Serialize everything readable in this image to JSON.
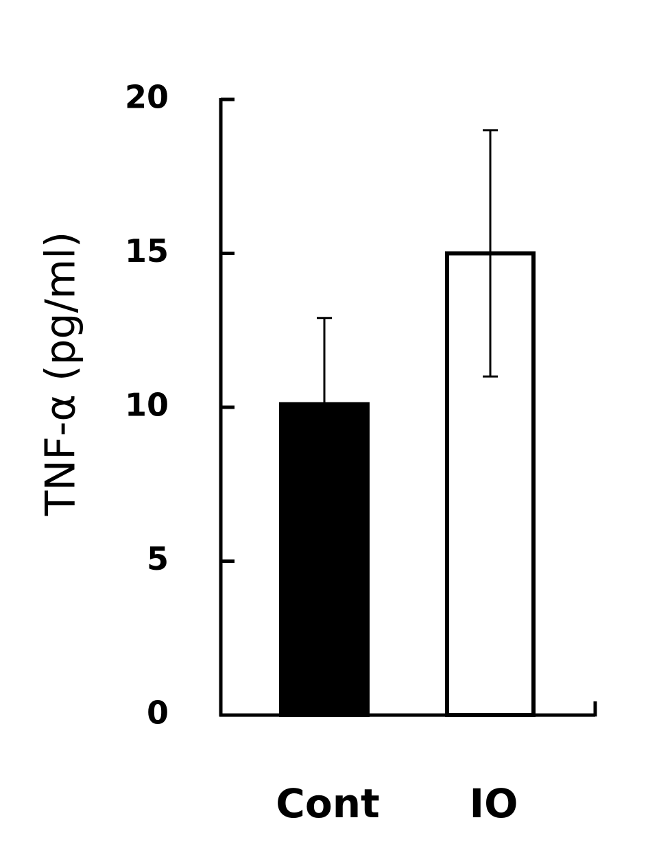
{
  "chart_data": {
    "type": "bar",
    "y_label": "TNF-α (pg/ml)",
    "categories": [
      "Cont",
      "IO"
    ],
    "values": [
      10.1,
      15
    ],
    "errors": [
      2.8,
      4
    ],
    "colors": [
      "#000000",
      "#ffffff"
    ],
    "edge_color": "#000000",
    "ylim": [
      0,
      20
    ],
    "yticks": [
      0,
      5,
      10,
      15,
      20
    ]
  }
}
